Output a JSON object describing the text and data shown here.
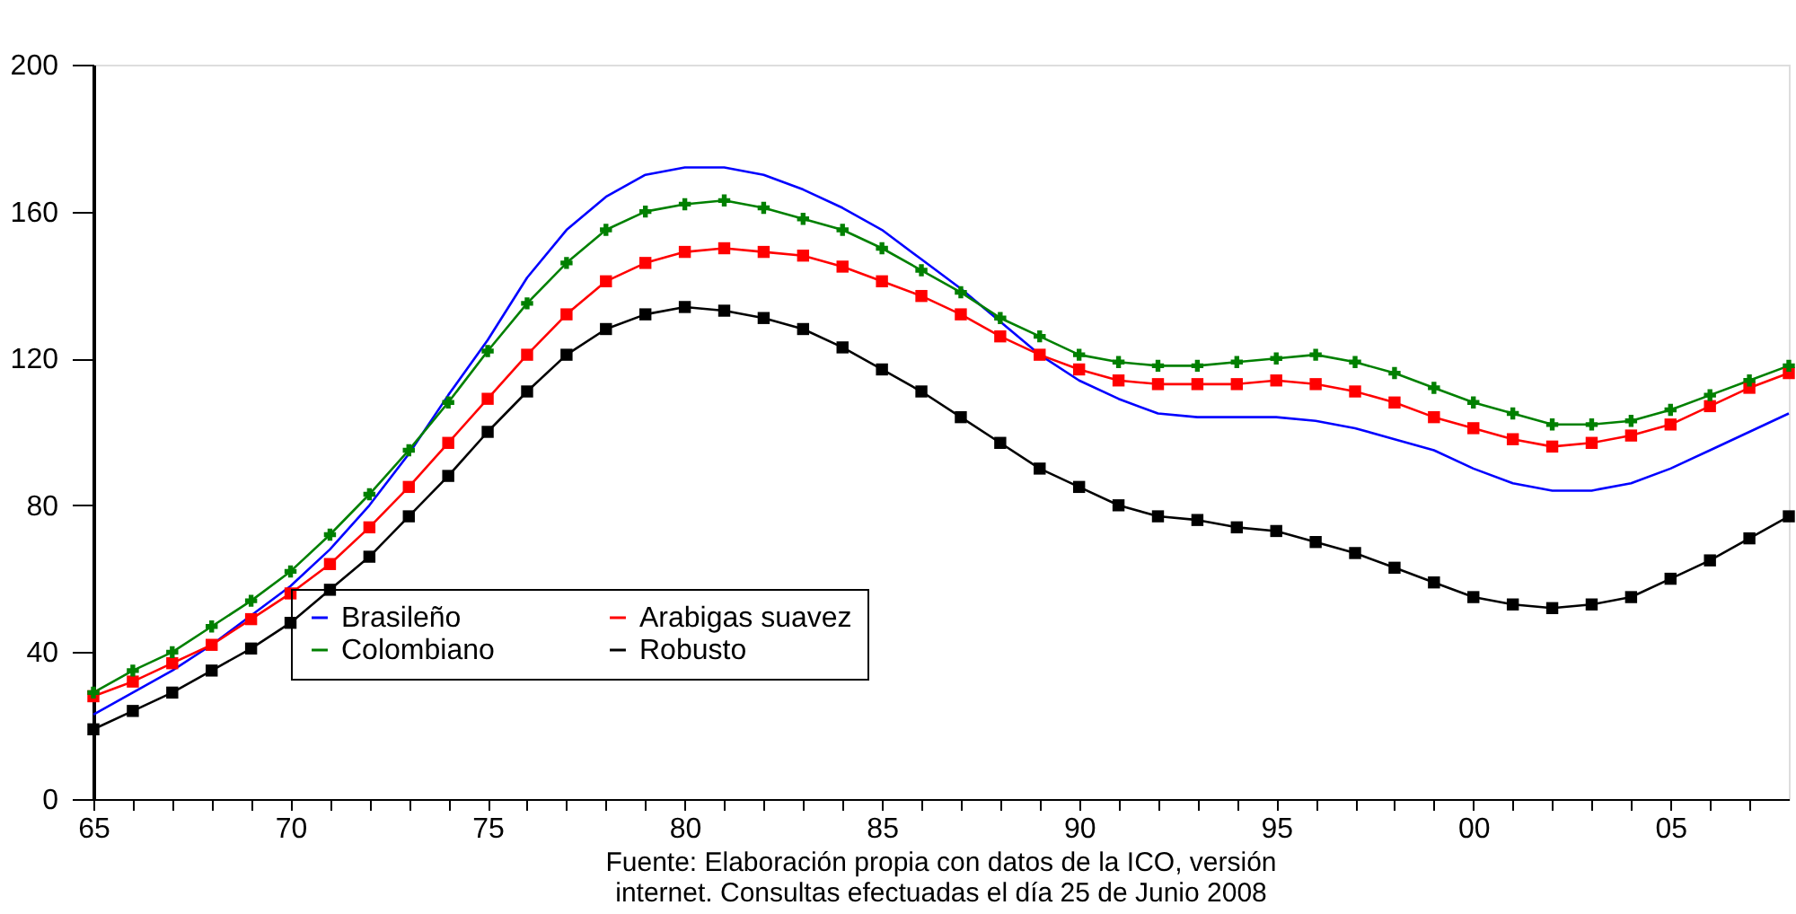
{
  "chart_data": {
    "type": "line",
    "x": [
      1965,
      1966,
      1967,
      1968,
      1969,
      1970,
      1971,
      1972,
      1973,
      1974,
      1975,
      1976,
      1977,
      1978,
      1979,
      1980,
      1981,
      1982,
      1983,
      1984,
      1985,
      1986,
      1987,
      1988,
      1989,
      1990,
      1991,
      1992,
      1993,
      1994,
      1995,
      1996,
      1997,
      1998,
      1999,
      2000,
      2001,
      2002,
      2003,
      2004,
      2005,
      2006,
      2007,
      2008
    ],
    "series": [
      {
        "name": "Brasileño",
        "color": "#0000ff",
        "marker": "none",
        "values": [
          23,
          29,
          35,
          42,
          50,
          58,
          68,
          80,
          94,
          110,
          125,
          142,
          155,
          164,
          170,
          172,
          172,
          170,
          166,
          161,
          155,
          147,
          139,
          130,
          121,
          114,
          109,
          105,
          104,
          104,
          104,
          103,
          101,
          98,
          95,
          90,
          86,
          84,
          84,
          86,
          90,
          95,
          100,
          105
        ]
      },
      {
        "name": "Colombiano",
        "color": "#008000",
        "marker": "cross",
        "values": [
          29,
          35,
          40,
          47,
          54,
          62,
          72,
          83,
          95,
          108,
          122,
          135,
          146,
          155,
          160,
          162,
          163,
          161,
          158,
          155,
          150,
          144,
          138,
          131,
          126,
          121,
          119,
          118,
          118,
          119,
          120,
          121,
          119,
          116,
          112,
          108,
          105,
          102,
          102,
          103,
          106,
          110,
          114,
          118
        ]
      },
      {
        "name": "Arabigas suavez",
        "color": "#ff0000",
        "marker": "square",
        "values": [
          28,
          32,
          37,
          42,
          49,
          56,
          64,
          74,
          85,
          97,
          109,
          121,
          132,
          141,
          146,
          149,
          150,
          149,
          148,
          145,
          141,
          137,
          132,
          126,
          121,
          117,
          114,
          113,
          113,
          113,
          114,
          113,
          111,
          108,
          104,
          101,
          98,
          96,
          97,
          99,
          102,
          107,
          112,
          116
        ]
      },
      {
        "name": "Robusto",
        "color": "#000000",
        "marker": "square",
        "values": [
          19,
          24,
          29,
          35,
          41,
          48,
          57,
          66,
          77,
          88,
          100,
          111,
          121,
          128,
          132,
          134,
          133,
          131,
          128,
          123,
          117,
          111,
          104,
          97,
          90,
          85,
          80,
          77,
          76,
          74,
          73,
          70,
          67,
          63,
          59,
          55,
          53,
          52,
          53,
          55,
          60,
          65,
          71,
          77
        ]
      }
    ],
    "xlim": [
      1965,
      2008
    ],
    "xticks": [
      {
        "value": 1965,
        "label": "65"
      },
      {
        "value": 1966,
        "label": null
      },
      {
        "value": 1967,
        "label": null
      },
      {
        "value": 1968,
        "label": null
      },
      {
        "value": 1969,
        "label": null
      },
      {
        "value": 1970,
        "label": "70"
      },
      {
        "value": 1971,
        "label": null
      },
      {
        "value": 1972,
        "label": null
      },
      {
        "value": 1973,
        "label": null
      },
      {
        "value": 1974,
        "label": null
      },
      {
        "value": 1975,
        "label": "75"
      },
      {
        "value": 1976,
        "label": null
      },
      {
        "value": 1977,
        "label": null
      },
      {
        "value": 1978,
        "label": null
      },
      {
        "value": 1979,
        "label": null
      },
      {
        "value": 1980,
        "label": "80"
      },
      {
        "value": 1981,
        "label": null
      },
      {
        "value": 1982,
        "label": null
      },
      {
        "value": 1983,
        "label": null
      },
      {
        "value": 1984,
        "label": null
      },
      {
        "value": 1985,
        "label": "85"
      },
      {
        "value": 1986,
        "label": null
      },
      {
        "value": 1987,
        "label": null
      },
      {
        "value": 1988,
        "label": null
      },
      {
        "value": 1989,
        "label": null
      },
      {
        "value": 1990,
        "label": "90"
      },
      {
        "value": 1991,
        "label": null
      },
      {
        "value": 1992,
        "label": null
      },
      {
        "value": 1993,
        "label": null
      },
      {
        "value": 1994,
        "label": null
      },
      {
        "value": 1995,
        "label": "95"
      },
      {
        "value": 1996,
        "label": null
      },
      {
        "value": 1997,
        "label": null
      },
      {
        "value": 1998,
        "label": null
      },
      {
        "value": 1999,
        "label": null
      },
      {
        "value": 2000,
        "label": "00"
      },
      {
        "value": 2001,
        "label": null
      },
      {
        "value": 2002,
        "label": null
      },
      {
        "value": 2003,
        "label": null
      },
      {
        "value": 2004,
        "label": null
      },
      {
        "value": 2005,
        "label": "05"
      },
      {
        "value": 2006,
        "label": null
      },
      {
        "value": 2007,
        "label": null
      }
    ],
    "ylim": [
      0,
      200
    ],
    "yticks": [
      0,
      40,
      80,
      120,
      160,
      200
    ],
    "grid": false,
    "legend": "bottom",
    "annotations": [
      "Fuente: Elaboración propia con datos de la ICO, versión internet. Consultas efectuadas el día 25 de Junio 2008"
    ]
  }
}
